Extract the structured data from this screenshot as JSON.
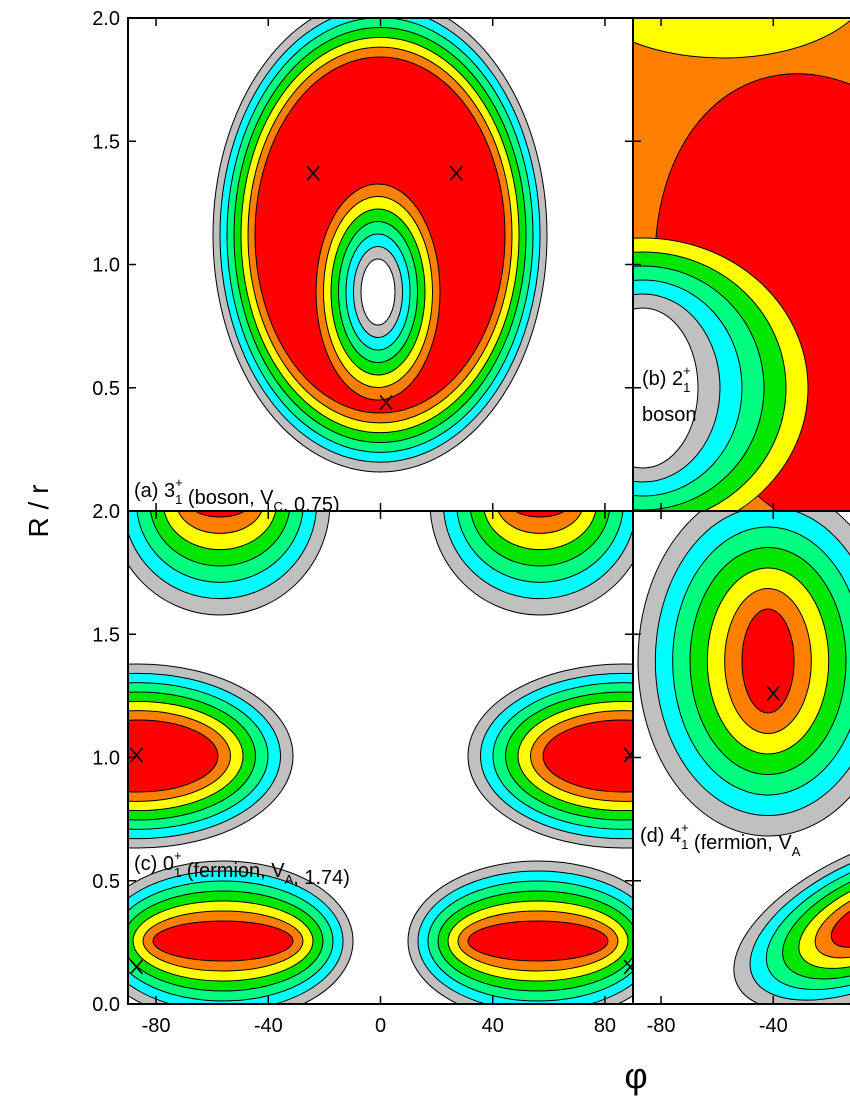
{
  "figure": {
    "xlabel": "φ",
    "ylabel": "R / r",
    "contour_colors": [
      "#c0c0c0",
      "#00ffff",
      "#00ff80",
      "#00e600",
      "#ffff00",
      "#ff8000",
      "#ff0000",
      "#ffffff"
    ]
  },
  "chart_data": [
    {
      "type": "contour",
      "label": [
        [
          "(a) 3",
          {
            "sub": "1",
            "sup": "+"
          },
          "  (boson, V",
          {
            "sub": "C"
          },
          ",  0.75)"
        ]
      ],
      "xlim": [
        -90,
        90
      ],
      "ylim": [
        0,
        2
      ],
      "xticks": [
        -80,
        -40,
        0,
        40,
        80
      ],
      "yticks": [
        0.5,
        {
          "value": 1,
          "label": "1.0"
        },
        1.5,
        {
          "value": 2,
          "label": "2.0"
        }
      ],
      "xtick_labels": false,
      "ytick_labels": true,
      "maxima": {
        "x": [
          -24,
          27,
          2
        ],
        "y": [
          1.37,
          1.37,
          0.44
        ]
      }
    },
    {
      "type": "contour",
      "label": [
        [
          "(b) 2",
          {
            "sub": "1",
            "sup": "+"
          }
        ],
        [
          "boson"
        ]
      ],
      "xlim": [
        -90,
        90
      ],
      "ylim": [
        0,
        2
      ],
      "xticks": [
        -80,
        -40
      ],
      "yticks": [
        0.5,
        1,
        1.5,
        2
      ],
      "xtick_labels": false,
      "ytick_labels": false,
      "maxima": {
        "x": [],
        "y": []
      }
    },
    {
      "type": "contour",
      "label": [
        [
          "(c) 0",
          {
            "sub": "1",
            "sup": "+"
          },
          " (fermion, V",
          {
            "sub": "A"
          },
          ",  1.74)"
        ]
      ],
      "xlim": [
        -90,
        90
      ],
      "ylim": [
        0,
        2
      ],
      "xticks": [
        -80,
        -40,
        0,
        40,
        80
      ],
      "yticks": [
        {
          "value": 0,
          "label": "0.0"
        },
        0.5,
        {
          "value": 1,
          "label": "1.0"
        },
        1.5,
        {
          "value": 2,
          "label": "2.0"
        }
      ],
      "xtick_labels": true,
      "ytick_labels": true,
      "maxima": {
        "x": [
          -87,
          89,
          -87,
          89
        ],
        "y": [
          1.01,
          1.01,
          0.15,
          0.15
        ]
      }
    },
    {
      "type": "contour",
      "label": [
        [
          "(d) 4",
          {
            "sub": "1",
            "sup": "+"
          },
          "  (fermion, V",
          {
            "sub": "A"
          }
        ]
      ],
      "xlim": [
        -90,
        90
      ],
      "ylim": [
        0,
        2
      ],
      "xticks": [
        -80,
        -40
      ],
      "yticks": [
        0.5,
        1,
        1.5,
        2
      ],
      "xtick_labels": true,
      "ytick_labels": false,
      "maxima": {
        "x": [
          -40
        ],
        "y": [
          1.26
        ]
      }
    }
  ]
}
